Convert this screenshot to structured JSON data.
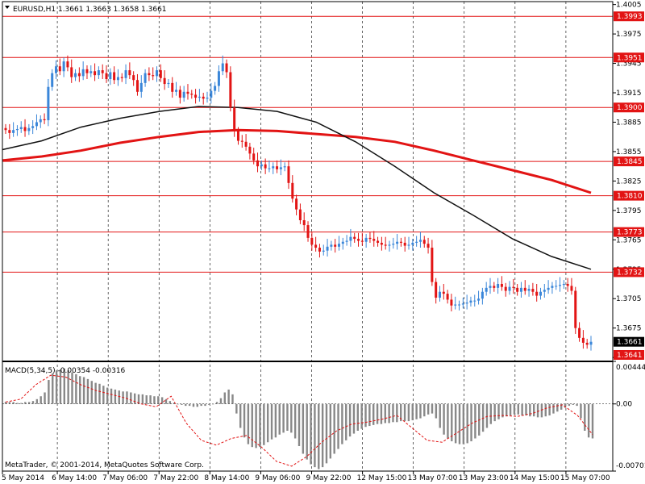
{
  "symbol_header": "EURUSD,H1  1.3661 1.3663 1.3658 1.3661",
  "copyright": "MetaTrader, © 2001-2014, MetaQuotes Software Corp.",
  "colors": {
    "background": "#ffffff",
    "bull": "#3a86d9",
    "bear": "#e21414",
    "level_line": "#e21414",
    "ma_fast": "#111111",
    "ma_slow": "#e21414",
    "macd_hist": "#888888",
    "macd_signal": "#e21414",
    "price_tag_bg": "#000000"
  },
  "chart_data": [
    {
      "type": "candlestick",
      "title": "EURUSD,H1",
      "symbol": "EURUSD",
      "timeframe": "H1",
      "ohlc_current": {
        "open": 1.3661,
        "high": 1.3663,
        "low": 1.3658,
        "close": 1.3661
      },
      "ylim": [
        1.3641,
        1.4008
      ],
      "y_ticks": [
        "1.4005",
        "1.3975",
        "1.3945",
        "1.3915",
        "1.3885",
        "1.3855",
        "1.3825",
        "1.3795",
        "1.3765",
        "1.3735",
        "1.3705",
        "1.3675",
        "1.3645"
      ],
      "x_ticks": [
        "5 May 2014",
        "6 May 14:00",
        "7 May 06:00",
        "7 May 22:00",
        "8 May 14:00",
        "9 May 06:00",
        "9 May 22:00",
        "12 May 15:00",
        "13 May 07:00",
        "13 May 23:00",
        "14 May 15:00",
        "15 May 07:00"
      ],
      "grid": true,
      "horizontal_levels": [
        1.3993,
        1.3951,
        1.39,
        1.3845,
        1.381,
        1.3773,
        1.3732,
        1.3641
      ],
      "level_labels": [
        "1.3993",
        "1.3951",
        "1.3900",
        "1.3845",
        "1.3810",
        "1.3773",
        "1.3732",
        "1.3641"
      ],
      "current_price_label": "1.3661",
      "closes": [
        1.3877,
        1.3874,
        1.3877,
        1.3878,
        1.388,
        1.3876,
        1.3879,
        1.3881,
        1.3885,
        1.3888,
        1.3887,
        1.3921,
        1.3935,
        1.3942,
        1.3937,
        1.3947,
        1.3941,
        1.3931,
        1.3935,
        1.3932,
        1.3939,
        1.3935,
        1.3937,
        1.3933,
        1.3938,
        1.3935,
        1.3929,
        1.3936,
        1.3928,
        1.3931,
        1.393,
        1.3938,
        1.3933,
        1.3928,
        1.3916,
        1.3925,
        1.3935,
        1.3933,
        1.3932,
        1.3938,
        1.393,
        1.3924,
        1.3925,
        1.3916,
        1.3918,
        1.391,
        1.3916,
        1.3914,
        1.3913,
        1.391,
        1.3911,
        1.3909,
        1.391,
        1.3917,
        1.3922,
        1.3937,
        1.3945,
        1.3936,
        1.39,
        1.3876,
        1.3866,
        1.3865,
        1.386,
        1.3853,
        1.3846,
        1.384,
        1.3842,
        1.3838,
        1.3838,
        1.384,
        1.3837,
        1.3839,
        1.384,
        1.3823,
        1.3807,
        1.3796,
        1.3785,
        1.378,
        1.3767,
        1.376,
        1.3757,
        1.3753,
        1.3754,
        1.3758,
        1.376,
        1.3758,
        1.3761,
        1.3763,
        1.3764,
        1.3768,
        1.3766,
        1.3764,
        1.3763,
        1.3767,
        1.3766,
        1.3764,
        1.3762,
        1.376,
        1.3759,
        1.376,
        1.3761,
        1.3763,
        1.3762,
        1.3759,
        1.376,
        1.3762,
        1.3763,
        1.3765,
        1.3761,
        1.3757,
        1.3722,
        1.3706,
        1.3712,
        1.371,
        1.3704,
        1.3698,
        1.3699,
        1.3699,
        1.37,
        1.3701,
        1.3703,
        1.3703,
        1.3705,
        1.3712,
        1.3716,
        1.3718,
        1.3716,
        1.372,
        1.3717,
        1.3713,
        1.3717,
        1.3716,
        1.3712,
        1.3716,
        1.3713,
        1.3715,
        1.3712,
        1.3708,
        1.3712,
        1.3714,
        1.3716,
        1.3718,
        1.3718,
        1.3719,
        1.372,
        1.3718,
        1.3713,
        1.3675,
        1.3665,
        1.366,
        1.3658,
        1.3661
      ],
      "ma_fast_samples": [
        1.3857,
        1.3866,
        1.388,
        1.3889,
        1.3896,
        1.3901,
        1.39,
        1.3896,
        1.3885,
        1.3865,
        1.384,
        1.3813,
        1.379,
        1.3766,
        1.3748,
        1.3735
      ],
      "ma_slow_samples": [
        1.3846,
        1.385,
        1.3856,
        1.3864,
        1.387,
        1.3875,
        1.3877,
        1.3876,
        1.3873,
        1.387,
        1.3865,
        1.3856,
        1.3846,
        1.3836,
        1.3826,
        1.3813
      ]
    },
    {
      "type": "bar",
      "title": "MACD(5,34,5) -0.00354 -0.00316",
      "indicator": "MACD",
      "params": [
        5,
        34,
        5
      ],
      "values_current": [
        -0.00354,
        -0.00316
      ],
      "ylim": [
        -0.00701,
        0.00444
      ],
      "y_ticks": [
        "0.00444",
        "0.00",
        "-0.00701"
      ],
      "histogram": [
        0.0002,
        0.0002,
        0.0002,
        0.0001,
        0.0001,
        0.0002,
        0.0002,
        0.0003,
        0.0005,
        0.0008,
        0.0012,
        0.0025,
        0.0032,
        0.0035,
        0.0036,
        0.0037,
        0.0035,
        0.0033,
        0.0031,
        0.0029,
        0.0028,
        0.0026,
        0.0024,
        0.0022,
        0.0021,
        0.0019,
        0.0017,
        0.0016,
        0.0015,
        0.0014,
        0.0013,
        0.0013,
        0.0012,
        0.0011,
        0.001,
        0.001,
        0.0009,
        0.0009,
        0.0008,
        0.0008,
        0.0007,
        0.0005,
        0.0003,
        0.0001,
        0.0,
        -0.0001,
        -0.0002,
        -0.0002,
        -0.0003,
        -0.0003,
        -0.0002,
        -0.0002,
        -0.0001,
        0.0,
        0.0002,
        0.0006,
        0.0012,
        0.0015,
        0.001,
        -0.001,
        -0.0025,
        -0.0035,
        -0.0042,
        -0.0045,
        -0.0046,
        -0.0045,
        -0.0043,
        -0.004,
        -0.0037,
        -0.0035,
        -0.0032,
        -0.003,
        -0.0028,
        -0.003,
        -0.0036,
        -0.0044,
        -0.0052,
        -0.0058,
        -0.0063,
        -0.0066,
        -0.0068,
        -0.0066,
        -0.0062,
        -0.0057,
        -0.0052,
        -0.0047,
        -0.0042,
        -0.0038,
        -0.0034,
        -0.0031,
        -0.0028,
        -0.0026,
        -0.0024,
        -0.0023,
        -0.0022,
        -0.0021,
        -0.0021,
        -0.002,
        -0.002,
        -0.0019,
        -0.0019,
        -0.0018,
        -0.0018,
        -0.0018,
        -0.0017,
        -0.0016,
        -0.0015,
        -0.0013,
        -0.0011,
        -0.001,
        -0.0015,
        -0.0025,
        -0.0032,
        -0.0036,
        -0.0039,
        -0.0041,
        -0.0042,
        -0.0042,
        -0.0041,
        -0.0039,
        -0.0036,
        -0.0033,
        -0.0029,
        -0.0025,
        -0.0021,
        -0.0018,
        -0.0016,
        -0.0014,
        -0.0013,
        -0.0012,
        -0.0011,
        -0.0011,
        -0.0012,
        -0.0012,
        -0.0013,
        -0.0013,
        -0.0014,
        -0.0014,
        -0.0013,
        -0.0012,
        -0.001,
        -0.0008,
        -0.0006,
        -0.0004,
        -0.0002,
        -0.0001,
        -0.0002,
        -0.0015,
        -0.0028,
        -0.0035,
        -0.0036
      ],
      "signal_samples": [
        0.0002,
        0.0005,
        0.002,
        0.003,
        0.0028,
        0.002,
        0.0014,
        0.001,
        0.0006,
        0.0,
        -0.0003,
        0.0008,
        -0.002,
        -0.0038,
        -0.0043,
        -0.0036,
        -0.0033,
        -0.0045,
        -0.006,
        -0.0065,
        -0.0055,
        -0.004,
        -0.0028,
        -0.0021,
        -0.0019,
        -0.0016,
        -0.0012,
        -0.0025,
        -0.0038,
        -0.004,
        -0.003,
        -0.002,
        -0.0013,
        -0.0012,
        -0.0013,
        -0.001,
        -0.0004,
        -0.0001,
        -0.0012,
        -0.0032
      ]
    }
  ]
}
